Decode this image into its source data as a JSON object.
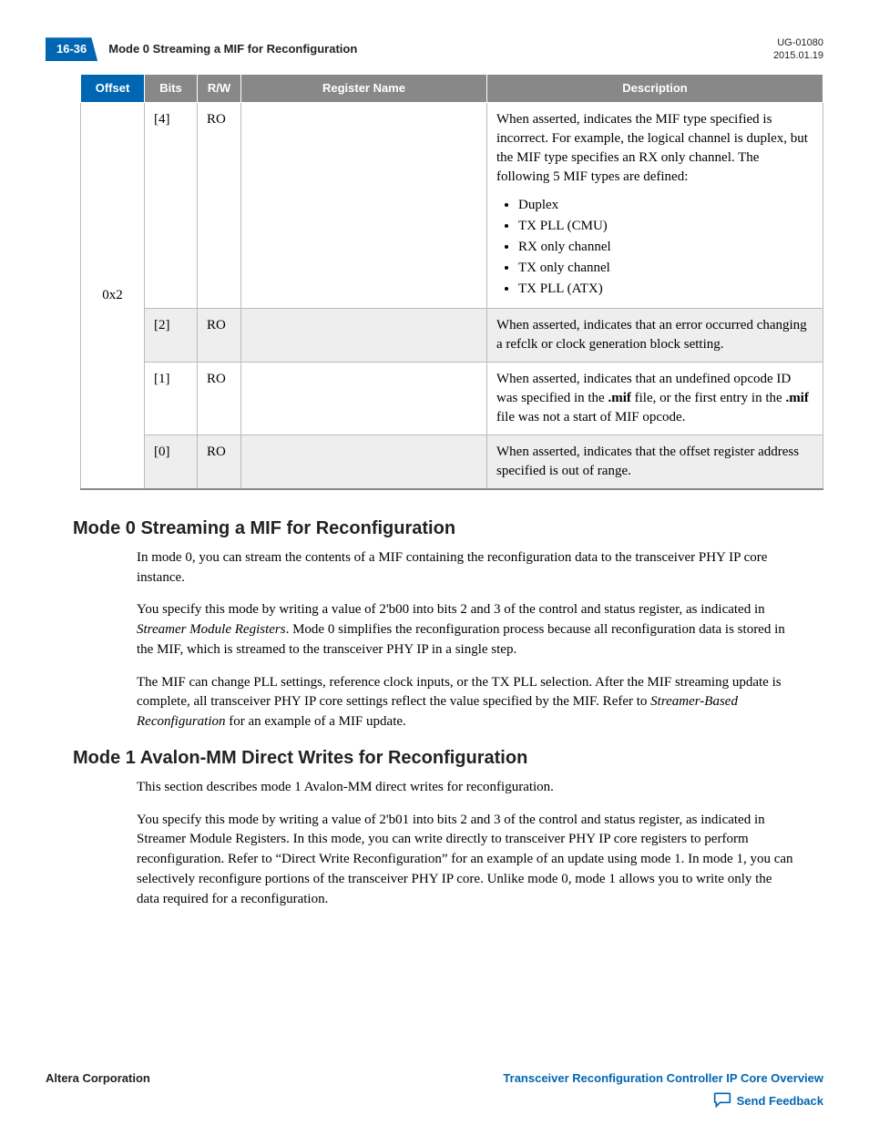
{
  "header": {
    "page_number": "16-36",
    "running_title": "Mode 0 Streaming a MIF for Reconfiguration",
    "doc_id": "UG-01080",
    "date": "2015.01.19"
  },
  "table": {
    "columns": [
      "Offset",
      "Bits",
      "R/W",
      "Register Name",
      "Description"
    ],
    "offset_value": "0x2",
    "rows": [
      {
        "bits": "[4]",
        "rw": "RO",
        "regname": "",
        "desc_intro": "When asserted, indicates the MIF type specified is incorrect. For example, the logical channel is duplex, but the MIF type specifies an RX only channel. The following 5 MIF types are defined:",
        "desc_list": [
          "Duplex",
          "TX PLL (CMU)",
          "RX only channel",
          "TX only channel",
          "TX PLL (ATX)"
        ],
        "shaded": false
      },
      {
        "bits": "[2]",
        "rw": "RO",
        "regname": "",
        "desc_intro": "When asserted, indicates that an error occurred changing a refclk or clock generation block setting.",
        "desc_list": [],
        "shaded": true
      },
      {
        "bits": "[1]",
        "rw": "RO",
        "regname": "",
        "desc_html": "When asserted, indicates that an undefined opcode ID was specified in the <b>.mif</b> file, or the first entry in the <b>.mif</b> file was not a start of MIF opcode.",
        "shaded": false
      },
      {
        "bits": "[0]",
        "rw": "RO",
        "regname": "",
        "desc_intro": "When asserted, indicates that the offset register address specified is out of range.",
        "desc_list": [],
        "shaded": true
      }
    ],
    "header_bg": "#888888",
    "header_offset_bg": "#0066b3",
    "border_color": "#bbbbbb",
    "shade_color": "#eeeeee"
  },
  "sections": [
    {
      "heading": "Mode 0 Streaming a MIF for Reconfiguration",
      "paragraphs": [
        {
          "html": "In mode 0, you can stream the contents of a MIF containing the reconfiguration data to the transceiver PHY IP core instance."
        },
        {
          "html": "You specify this mode by writing a value of 2'b00 into bits 2 and 3 of the control and status register, as indicated in <i>Streamer Module Registers</i>. Mode 0 simplifies the reconfiguration process because all reconfiguration data is stored in the MIF, which is streamed to the transceiver PHY IP in a single step."
        },
        {
          "html": "The MIF can change PLL settings, reference clock inputs, or the TX PLL selection. After the MIF streaming update is complete, all transceiver PHY IP core settings reflect the value specified by the MIF. Refer to <i>Streamer-Based Reconfiguration</i> for an example of a MIF update."
        }
      ]
    },
    {
      "heading": "Mode 1 Avalon-MM Direct Writes for Reconfiguration",
      "paragraphs": [
        {
          "html": "This section describes mode 1 Avalon-MM direct writes for reconfiguration."
        },
        {
          "html": "You specify this mode by writing a value of 2'b01 into bits 2 and 3 of the control and status register, as indicated in Streamer Module Registers. In this mode, you can write directly to transceiver PHY IP core registers to perform reconfiguration. Refer to “Direct Write Reconfiguration” for an example of an update using mode 1. In mode 1, you can selectively reconfigure portions of the transceiver PHY IP core. Unlike mode 0, mode 1 allows you to write only the data required for a reconfiguration."
        }
      ]
    }
  ],
  "footer": {
    "left": "Altera Corporation",
    "right": "Transceiver Reconfiguration Controller IP Core Overview",
    "feedback": "Send Feedback"
  },
  "colors": {
    "brand_blue": "#0066b3",
    "header_gray": "#888888",
    "text": "#000000"
  }
}
